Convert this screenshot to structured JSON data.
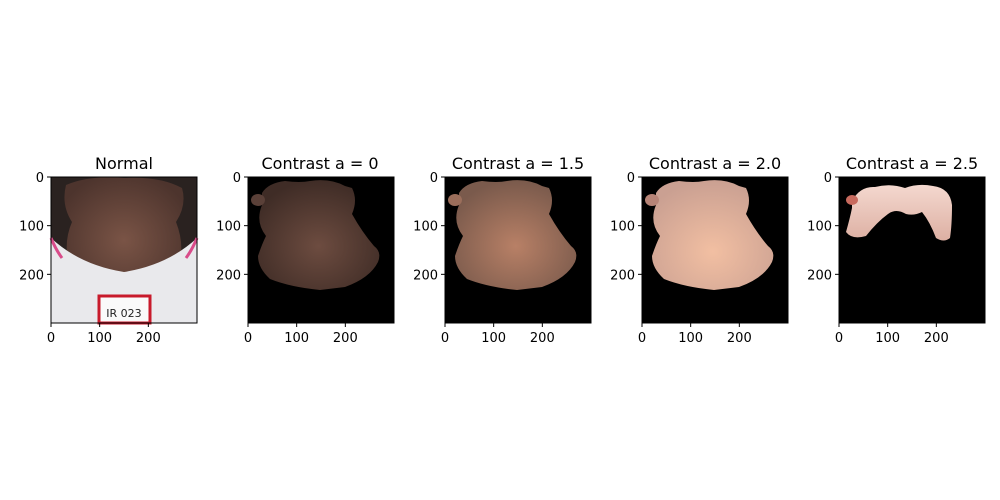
{
  "figure": {
    "panels": [
      {
        "title": "Normal",
        "variant": "normal",
        "x_ticks": [
          "0",
          "100",
          "200"
        ],
        "y_ticks": [
          "0",
          "100",
          "200"
        ]
      },
      {
        "title": "Contrast a = 0",
        "variant": "masked",
        "x_ticks": [
          "0",
          "100",
          "200"
        ],
        "y_ticks": [
          "0",
          "100",
          "200"
        ]
      },
      {
        "title": "Contrast a = 1.5",
        "variant": "masked",
        "x_ticks": [
          "0",
          "100",
          "200"
        ],
        "y_ticks": [
          "0",
          "100",
          "200"
        ]
      },
      {
        "title": "Contrast a = 2.0",
        "variant": "masked",
        "x_ticks": [
          "0",
          "100",
          "200"
        ],
        "y_ticks": [
          "0",
          "100",
          "200"
        ]
      },
      {
        "title": "Contrast a = 2.5",
        "variant": "partial",
        "x_ticks": [
          "0",
          "100",
          "200"
        ],
        "y_ticks": [
          "0",
          "100",
          "200"
        ]
      }
    ],
    "label_text": "IR 023",
    "colors": {
      "skin_normal": "#6b4a3f",
      "skin_a0": "#5a4038",
      "skin_a15": "#9b6e5b",
      "skin_a20": "#d8a38a",
      "skin_a25": "#e8c2b6",
      "background": "#000000",
      "shirt": "#e9e9ec",
      "label_border": "#c81a2b"
    }
  }
}
